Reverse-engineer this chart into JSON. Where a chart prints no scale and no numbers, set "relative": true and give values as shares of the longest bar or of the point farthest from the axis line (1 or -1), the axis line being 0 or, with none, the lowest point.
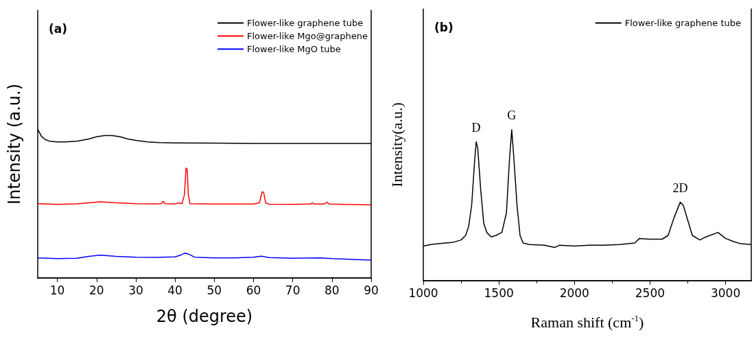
{
  "chart_data": [
    {
      "type": "line",
      "relative": true,
      "xlabel": "2θ (degree)",
      "ylabel": "Intensity (a.u.)",
      "xlim": [
        5,
        90
      ],
      "xticks": [
        10,
        20,
        30,
        40,
        50,
        60,
        70,
        80,
        90
      ],
      "grid": false,
      "legend": "top right",
      "marker": "none",
      "line_style": "solid",
      "annotations": [
        "(a)"
      ],
      "series": [
        {
          "name": "Flower-like graphene tube",
          "color": "#000000",
          "x": [
            5,
            6,
            7,
            8,
            10,
            12,
            15,
            18,
            20,
            22,
            24,
            26,
            28,
            30,
            33,
            36,
            40,
            50,
            60,
            70,
            80,
            90
          ],
          "values": [
            1.0,
            0.95,
            0.93,
            0.92,
            0.915,
            0.915,
            0.92,
            0.935,
            0.95,
            0.958,
            0.958,
            0.95,
            0.935,
            0.925,
            0.915,
            0.91,
            0.908,
            0.907,
            0.905,
            0.905,
            0.905,
            0.905
          ]
        },
        {
          "name": "Flower-like Mgo@graphene",
          "color": "#ff0000",
          "x": [
            5,
            10,
            15,
            18,
            21,
            25,
            30,
            35,
            36.5,
            37,
            37.5,
            40,
            41,
            41.8,
            42.4,
            42.8,
            43.1,
            43.4,
            43.8,
            50,
            55,
            60,
            61.5,
            62.2,
            62.6,
            63.1,
            64,
            70,
            74.5,
            75,
            75.5,
            78,
            78.7,
            79.3,
            85,
            90
          ],
          "values": [
            0.5,
            0.495,
            0.498,
            0.505,
            0.512,
            0.505,
            0.5,
            0.498,
            0.5,
            0.515,
            0.5,
            0.498,
            0.505,
            0.5,
            0.56,
            0.74,
            0.73,
            0.56,
            0.5,
            0.497,
            0.497,
            0.497,
            0.505,
            0.58,
            0.575,
            0.505,
            0.496,
            0.495,
            0.497,
            0.505,
            0.497,
            0.497,
            0.51,
            0.497,
            0.494,
            0.492
          ]
        },
        {
          "name": "Flower-like MgO tube",
          "color": "#0000ff",
          "x": [
            5,
            10,
            15,
            18,
            21,
            25,
            30,
            35,
            40,
            41.5,
            42.5,
            43.5,
            45,
            50,
            55,
            60,
            62,
            64,
            70,
            77,
            80,
            90
          ],
          "values": [
            0.135,
            0.13,
            0.133,
            0.145,
            0.153,
            0.145,
            0.14,
            0.138,
            0.142,
            0.155,
            0.167,
            0.16,
            0.14,
            0.135,
            0.135,
            0.14,
            0.147,
            0.137,
            0.133,
            0.135,
            0.13,
            0.12
          ]
        }
      ]
    },
    {
      "type": "line",
      "relative": true,
      "xlabel": "Raman shift (cm$^{-1}$)",
      "ylabel": "Intensity(a.u.)",
      "xlim": [
        1000,
        3170
      ],
      "xticks": [
        1000,
        1500,
        2000,
        2500,
        3000
      ],
      "grid": false,
      "legend": "top right",
      "marker": "none",
      "line_style": "solid",
      "annotations": [
        "(b)",
        {
          "text": "D",
          "x": 1350,
          "y": 0.92
        },
        {
          "text": "G",
          "x": 1585,
          "y": 1.0
        },
        {
          "text": "2D",
          "x": 2700,
          "y": 0.52
        }
      ],
      "series": [
        {
          "name": "Flower-like graphene tube",
          "color": "#000000",
          "x": [
            1000,
            1050,
            1100,
            1150,
            1200,
            1250,
            1280,
            1300,
            1320,
            1340,
            1350,
            1360,
            1380,
            1400,
            1420,
            1450,
            1480,
            1520,
            1550,
            1570,
            1585,
            1600,
            1620,
            1640,
            1660,
            1700,
            1800,
            1870,
            1900,
            2000,
            2100,
            2200,
            2300,
            2400,
            2430,
            2500,
            2580,
            2620,
            2660,
            2700,
            2720,
            2750,
            2780,
            2830,
            2870,
            2950,
            3000,
            3050,
            3100,
            3170
          ],
          "values": [
            0.23,
            0.24,
            0.245,
            0.25,
            0.255,
            0.27,
            0.3,
            0.36,
            0.5,
            0.8,
            0.92,
            0.88,
            0.6,
            0.38,
            0.32,
            0.29,
            0.3,
            0.32,
            0.45,
            0.8,
            1.0,
            0.8,
            0.5,
            0.3,
            0.25,
            0.24,
            0.235,
            0.22,
            0.235,
            0.23,
            0.235,
            0.235,
            0.24,
            0.25,
            0.28,
            0.275,
            0.275,
            0.3,
            0.42,
            0.52,
            0.5,
            0.4,
            0.3,
            0.27,
            0.29,
            0.32,
            0.28,
            0.26,
            0.245,
            0.24
          ]
        }
      ]
    }
  ]
}
